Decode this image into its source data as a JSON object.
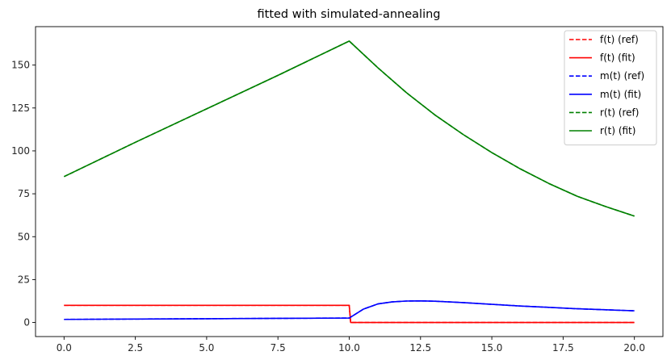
{
  "chart_data": {
    "type": "line",
    "title": "fitted with simulated-annealing",
    "xlabel": "",
    "ylabel": "",
    "xlim": [
      -1.0,
      21.0
    ],
    "ylim": [
      -8.2,
      172.4
    ],
    "xticks": [
      0.0,
      2.5,
      5.0,
      7.5,
      10.0,
      12.5,
      15.0,
      17.5,
      20.0
    ],
    "xtick_labels": [
      "0.0",
      "2.5",
      "5.0",
      "7.5",
      "10.0",
      "12.5",
      "15.0",
      "17.5",
      "20.0"
    ],
    "yticks": [
      0,
      25,
      50,
      75,
      100,
      125,
      150
    ],
    "ytick_labels": [
      "0",
      "25",
      "50",
      "75",
      "100",
      "125",
      "150"
    ],
    "grid": false,
    "legend_position": "top-right",
    "series": [
      {
        "name": "f(t) (ref)",
        "color": "#ff0000",
        "dash": true,
        "x": [
          0,
          9.95,
          10.0,
          10.05,
          20
        ],
        "y": [
          10,
          10,
          10,
          0,
          0
        ]
      },
      {
        "name": "f(t) (fit)",
        "color": "#ff0000",
        "dash": false,
        "x": [
          0,
          9.95,
          10.0,
          10.05,
          20
        ],
        "y": [
          10,
          10,
          10,
          0,
          0
        ]
      },
      {
        "name": "m(t) (ref)",
        "color": "#0000ff",
        "dash": true,
        "x": [
          0,
          2.5,
          5,
          7.5,
          10,
          10.5,
          11,
          11.5,
          12,
          12.5,
          13,
          14,
          15,
          16,
          17,
          18,
          19,
          20
        ],
        "y": [
          1.8,
          2.0,
          2.2,
          2.4,
          2.6,
          7.8,
          10.8,
          12.0,
          12.5,
          12.6,
          12.4,
          11.6,
          10.6,
          9.6,
          8.8,
          8.0,
          7.4,
          6.8
        ]
      },
      {
        "name": "m(t) (fit)",
        "color": "#0000ff",
        "dash": false,
        "x": [
          0,
          2.5,
          5,
          7.5,
          10,
          10.5,
          11,
          11.5,
          12,
          12.5,
          13,
          14,
          15,
          16,
          17,
          18,
          19,
          20
        ],
        "y": [
          1.8,
          2.0,
          2.2,
          2.4,
          2.6,
          7.8,
          10.8,
          12.0,
          12.5,
          12.6,
          12.4,
          11.6,
          10.6,
          9.6,
          8.8,
          8.0,
          7.4,
          6.8
        ]
      },
      {
        "name": "r(t) (ref)",
        "color": "#008000",
        "dash": true,
        "x": [
          0,
          2.5,
          5,
          7.5,
          10,
          11,
          12,
          13,
          14,
          15,
          16,
          17,
          18,
          19,
          20
        ],
        "y": [
          85,
          105,
          124.5,
          144,
          164,
          148.5,
          134,
          121,
          109.5,
          99,
          89.5,
          81,
          73.5,
          67.5,
          62
        ]
      },
      {
        "name": "r(t) (fit)",
        "color": "#008000",
        "dash": false,
        "x": [
          0,
          2.5,
          5,
          7.5,
          10,
          11,
          12,
          13,
          14,
          15,
          16,
          17,
          18,
          19,
          20
        ],
        "y": [
          85,
          105,
          124.5,
          144,
          164,
          148.5,
          134,
          121,
          109.5,
          99,
          89.5,
          81,
          73.5,
          67.5,
          62
        ]
      }
    ]
  }
}
